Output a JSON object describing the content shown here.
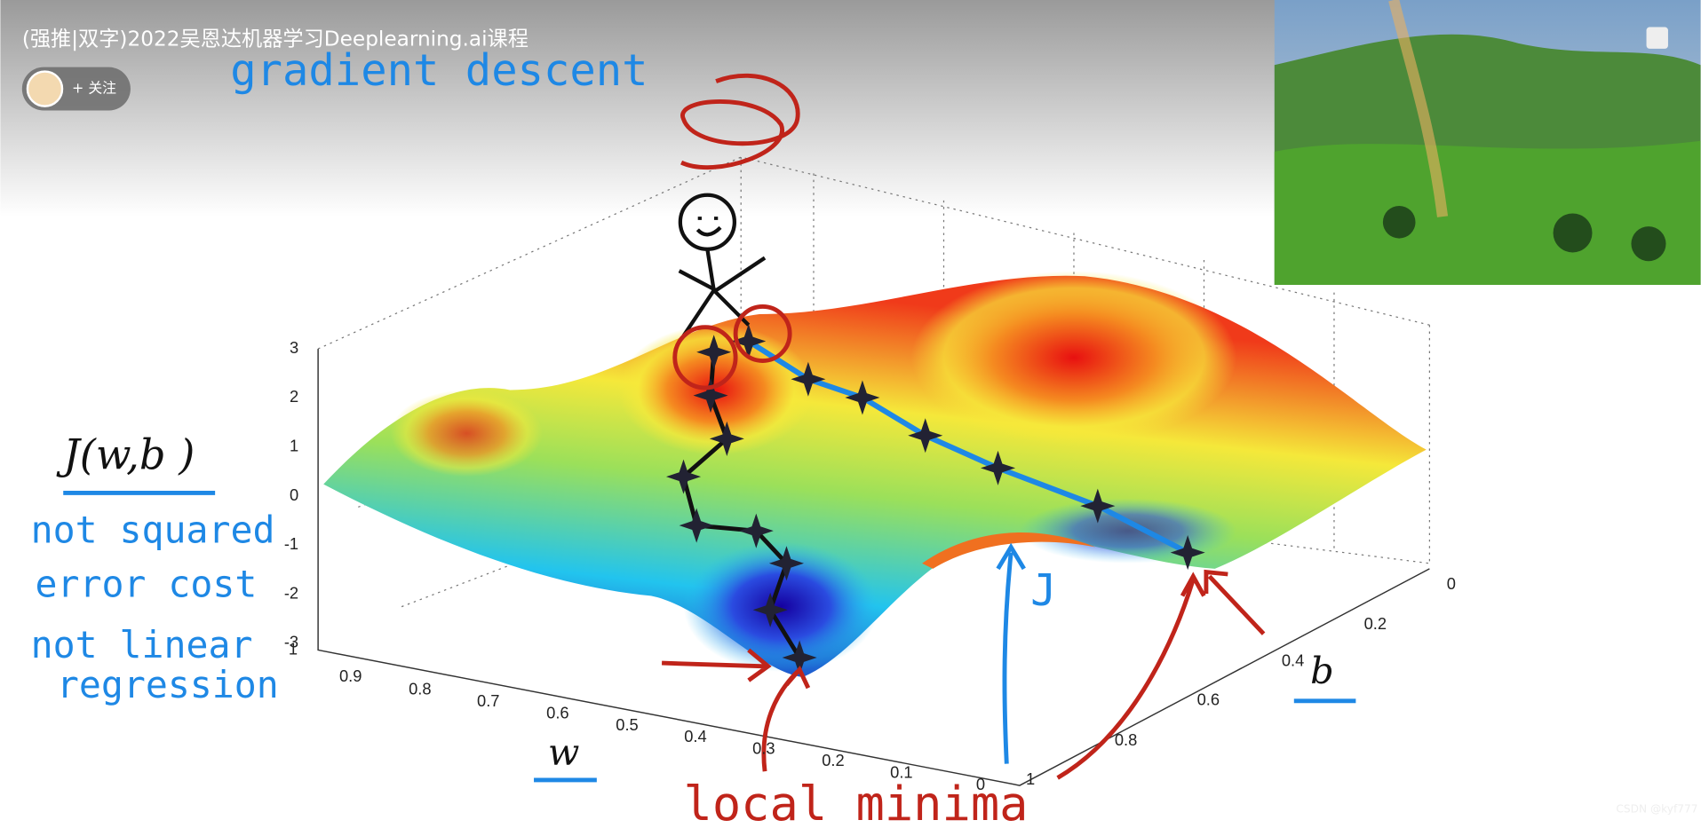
{
  "video": {
    "title": "(强推|双字)2022吴恩达机器学习Deeplearning.ai课程",
    "follow": "+ 关注",
    "watermark": "CSDN @kyf777"
  },
  "slide": {
    "heading": "gradient descent",
    "cost": "J(w,b )",
    "notes": [
      "not squared",
      "error cost",
      "not linear",
      "regression"
    ],
    "w_label": "w",
    "b_label": "b",
    "j_label": "J",
    "minima": "local minima",
    "axes": {
      "z_ticks": [
        "3",
        "2",
        "1",
        "0",
        "-1",
        "-2",
        "-3"
      ],
      "w_ticks": [
        "1",
        "0.9",
        "0.8",
        "0.7",
        "0.6",
        "0.5",
        "0.4",
        "0.3",
        "0.2",
        "0.1",
        "0"
      ],
      "b_ticks": [
        "0",
        "0.2",
        "0.4",
        "0.6",
        "0.8",
        "1"
      ]
    }
  }
}
